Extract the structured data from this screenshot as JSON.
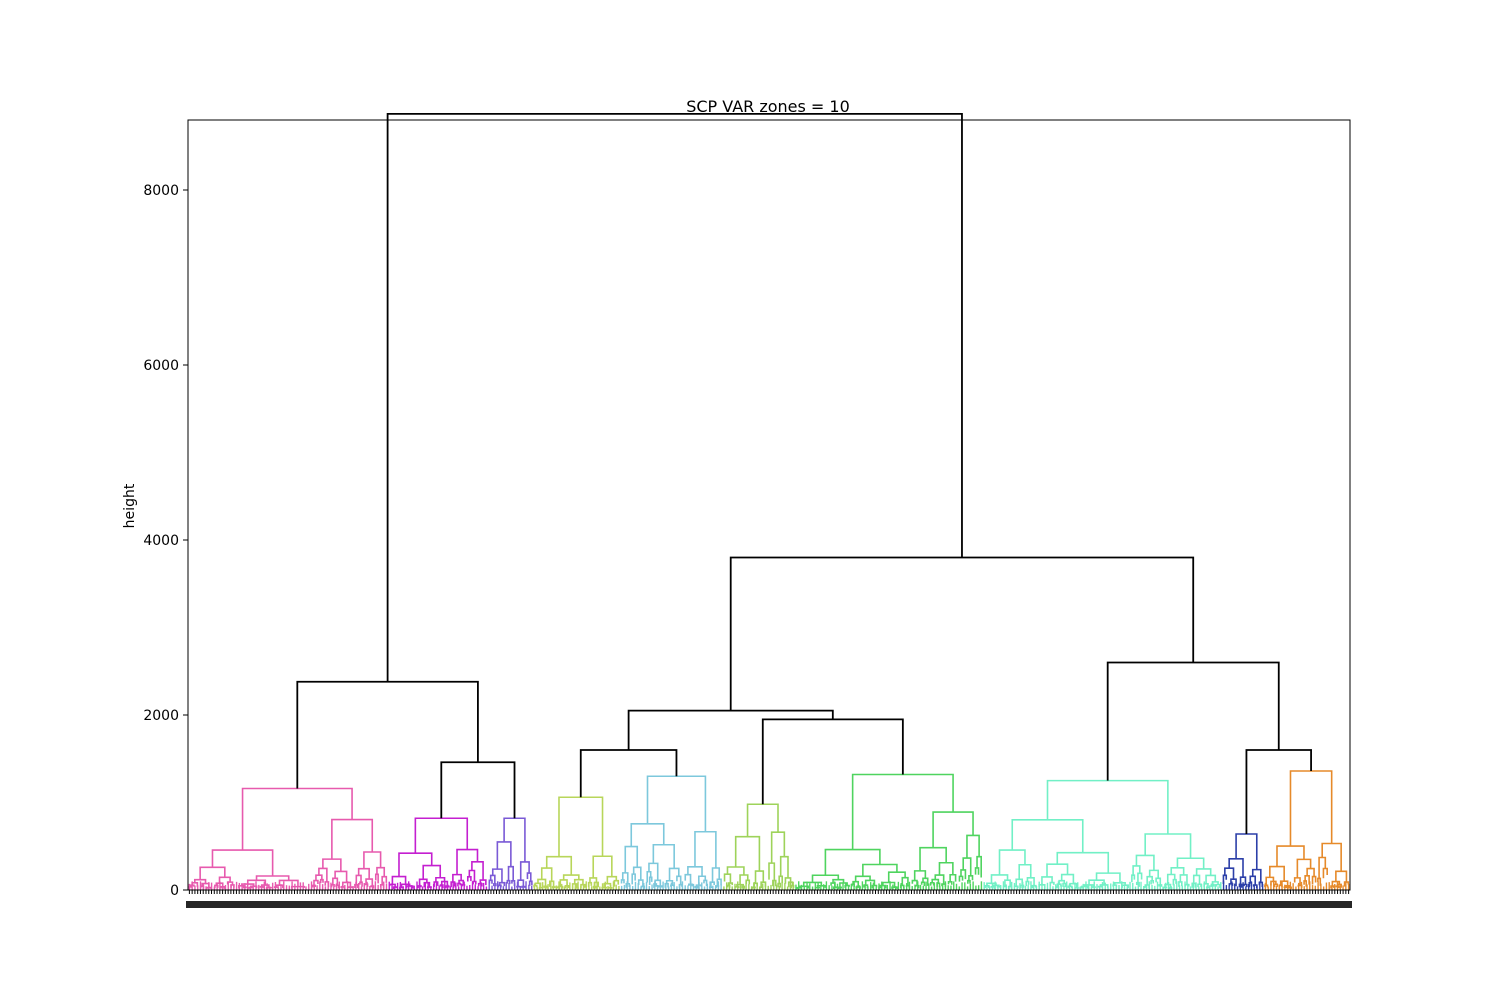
{
  "chart_data": {
    "type": "dendrogram",
    "title": "SCP VAR zones = 10",
    "xlabel": "",
    "ylabel": "height",
    "ylim": [
      0,
      8800
    ],
    "yticks": [
      0,
      2000,
      4000,
      6000,
      8000
    ],
    "grid": false,
    "legend": "none",
    "link_color": "#000000",
    "clusters": [
      {
        "color": "#e75aae",
        "x_range": [
          0.0,
          17.2
        ],
        "top_height": 1160
      },
      {
        "color": "#c41fd0",
        "x_range": [
          17.2,
          25.8
        ],
        "top_height": 820
      },
      {
        "color": "#7a5ad6",
        "x_range": [
          25.8,
          29.7
        ],
        "top_height": 820
      },
      {
        "color": "#b8d65a",
        "x_range": [
          29.7,
          37.2
        ],
        "top_height": 1060
      },
      {
        "color": "#7dc8dc",
        "x_range": [
          37.2,
          46.0
        ],
        "top_height": 1300
      },
      {
        "color": "#9ed35a",
        "x_range": [
          46.0,
          52.2
        ],
        "top_height": 980
      },
      {
        "color": "#4fd45f",
        "x_range": [
          52.2,
          68.4
        ],
        "top_height": 1320
      },
      {
        "color": "#72f0c6",
        "x_range": [
          68.4,
          89.0
        ],
        "top_height": 1250
      },
      {
        "color": "#2c3fa8",
        "x_range": [
          89.0,
          92.6
        ],
        "top_height": 640
      },
      {
        "color": "#e68a2a",
        "x_range": [
          92.6,
          100.0
        ],
        "top_height": 1360
      }
    ],
    "merges": [
      {
        "left": "cluster-1",
        "right": "cluster-2-3",
        "height": 2380
      },
      {
        "left": "cluster-2",
        "right": "cluster-3",
        "height": 1460
      },
      {
        "left": "cluster-4",
        "right": "cluster-5",
        "height": 1600
      },
      {
        "left": "cluster-6",
        "right": "cluster-7",
        "height": 1950
      },
      {
        "left": "cluster-4-5",
        "right": "cluster-6-7",
        "height": 2050
      },
      {
        "left": "cluster-9",
        "right": "cluster-10",
        "height": 1600
      },
      {
        "left": "cluster-8",
        "right": "cluster-9-10",
        "height": 2600
      },
      {
        "left": "cluster-4-7",
        "right": "cluster-8-10",
        "height": 3800
      },
      {
        "left": "cluster-1-3",
        "right": "cluster-4-10",
        "height": 8870
      }
    ]
  }
}
